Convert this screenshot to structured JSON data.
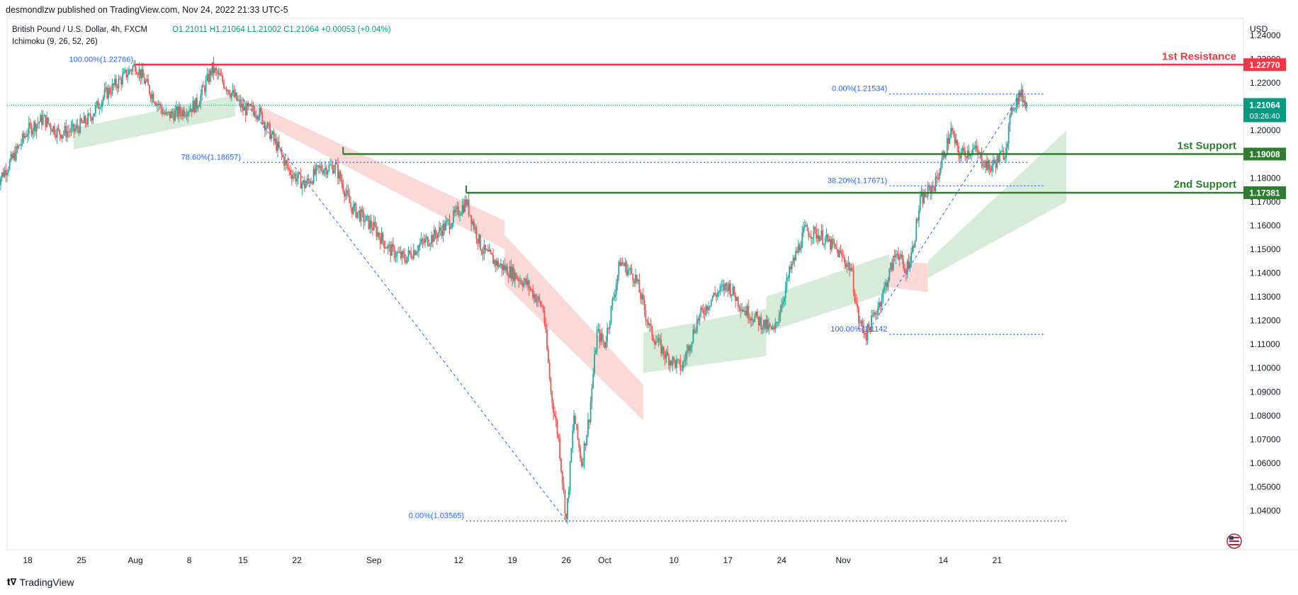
{
  "header": {
    "published": "desmondlzw published on TradingView.com, Nov 24, 2022 21:33 UTC-5",
    "symbol": "British Pound / U.S. Dollar, 4h, FXCM",
    "ohlc": "O1.21011  H1.21064  L1.21002  C1.21064 +0.00053 (+0.04%)",
    "indicator": "Ichimoku (9, 26, 52, 26)"
  },
  "footer": {
    "brand": "TradingView"
  },
  "colors": {
    "bull": "#26a69a",
    "bear": "#ef5350",
    "resistance": "#f23645",
    "support": "#2e7d32",
    "fib": "#2962ff",
    "cloud_bull": "#cfe8d1",
    "cloud_bear": "#f9d2cf",
    "price_tag": "#089981"
  },
  "chart_data": {
    "type": "candlestick",
    "currency": "USD",
    "ylim": [
      1.033,
      1.243
    ],
    "y_ticks": [
      1.24,
      1.23,
      1.22,
      1.21,
      1.2,
      1.19,
      1.18,
      1.17,
      1.16,
      1.15,
      1.14,
      1.13,
      1.12,
      1.11,
      1.1,
      1.09,
      1.08,
      1.07,
      1.06,
      1.05,
      1.04
    ],
    "y_tick_labels": [
      "1.24000",
      "1.23000",
      "1.22000",
      "1.21000",
      "1.20000",
      "1.19000",
      "1.18000",
      "1.17000",
      "1.16000",
      "1.15000",
      "1.14000",
      "1.13000",
      "1.12000",
      "1.11000",
      "1.10000",
      "1.09000",
      "1.08000",
      "1.07000",
      "1.06000",
      "1.05000",
      "1.04000"
    ],
    "x_tick_labels": [
      {
        "label": "18",
        "date": "2022-07-18"
      },
      {
        "label": "25",
        "date": "2022-07-25"
      },
      {
        "label": "Aug",
        "date": "2022-08-01"
      },
      {
        "label": "8",
        "date": "2022-08-08"
      },
      {
        "label": "15",
        "date": "2022-08-15"
      },
      {
        "label": "22",
        "date": "2022-08-22"
      },
      {
        "label": "Sep",
        "date": "2022-09-01"
      },
      {
        "label": "12",
        "date": "2022-09-12"
      },
      {
        "label": "19",
        "date": "2022-09-19"
      },
      {
        "label": "26",
        "date": "2022-09-26"
      },
      {
        "label": "Oct",
        "date": "2022-10-01"
      },
      {
        "label": "10",
        "date": "2022-10-10"
      },
      {
        "label": "17",
        "date": "2022-10-17"
      },
      {
        "label": "24",
        "date": "2022-10-24"
      },
      {
        "label": "Nov",
        "date": "2022-11-01"
      },
      {
        "label": "14",
        "date": "2022-11-14"
      },
      {
        "label": "21",
        "date": "2022-11-21"
      }
    ],
    "price_path": [
      [
        "2022-07-14",
        1.178
      ],
      [
        "2022-07-16",
        1.188
      ],
      [
        "2022-07-18",
        1.2
      ],
      [
        "2022-07-20",
        1.205
      ],
      [
        "2022-07-22",
        1.199
      ],
      [
        "2022-07-24",
        1.2
      ],
      [
        "2022-07-26",
        1.205
      ],
      [
        "2022-07-28",
        1.215
      ],
      [
        "2022-07-30",
        1.221
      ],
      [
        "2022-08-01",
        1.2277
      ],
      [
        "2022-08-03",
        1.216
      ],
      [
        "2022-08-05",
        1.206
      ],
      [
        "2022-08-07",
        1.208
      ],
      [
        "2022-08-09",
        1.211
      ],
      [
        "2022-08-11",
        1.226
      ],
      [
        "2022-08-13",
        1.218
      ],
      [
        "2022-08-15",
        1.209
      ],
      [
        "2022-08-17",
        1.208
      ],
      [
        "2022-08-19",
        1.196
      ],
      [
        "2022-08-21",
        1.183
      ],
      [
        "2022-08-23",
        1.177
      ],
      [
        "2022-08-25",
        1.184
      ],
      [
        "2022-08-27",
        1.185
      ],
      [
        "2022-08-29",
        1.168
      ],
      [
        "2022-09-01",
        1.159
      ],
      [
        "2022-09-03",
        1.15
      ],
      [
        "2022-09-05",
        1.146
      ],
      [
        "2022-09-07",
        1.152
      ],
      [
        "2022-09-09",
        1.156
      ],
      [
        "2022-09-11",
        1.162
      ],
      [
        "2022-09-13",
        1.17
      ],
      [
        "2022-09-15",
        1.15
      ],
      [
        "2022-09-17",
        1.144
      ],
      [
        "2022-09-19",
        1.14
      ],
      [
        "2022-09-21",
        1.135
      ],
      [
        "2022-09-23",
        1.125
      ],
      [
        "2022-09-24",
        1.09
      ],
      [
        "2022-09-25",
        1.07
      ],
      [
        "2022-09-26",
        1.036
      ],
      [
        "2022-09-27",
        1.08
      ],
      [
        "2022-09-28",
        1.06
      ],
      [
        "2022-09-29",
        1.08
      ],
      [
        "2022-09-30",
        1.115
      ],
      [
        "2022-10-01",
        1.11
      ],
      [
        "2022-10-03",
        1.145
      ],
      [
        "2022-10-05",
        1.138
      ],
      [
        "2022-10-07",
        1.115
      ],
      [
        "2022-10-09",
        1.105
      ],
      [
        "2022-10-11",
        1.1
      ],
      [
        "2022-10-13",
        1.12
      ],
      [
        "2022-10-15",
        1.13
      ],
      [
        "2022-10-17",
        1.135
      ],
      [
        "2022-10-19",
        1.125
      ],
      [
        "2022-10-21",
        1.12
      ],
      [
        "2022-10-23",
        1.115
      ],
      [
        "2022-10-25",
        1.14
      ],
      [
        "2022-10-27",
        1.158
      ],
      [
        "2022-10-29",
        1.156
      ],
      [
        "2022-10-31",
        1.15
      ],
      [
        "2022-11-02",
        1.142
      ],
      [
        "2022-11-03",
        1.12
      ],
      [
        "2022-11-04",
        1.1142
      ],
      [
        "2022-11-06",
        1.13
      ],
      [
        "2022-11-08",
        1.15
      ],
      [
        "2022-11-09",
        1.14
      ],
      [
        "2022-11-10",
        1.15
      ],
      [
        "2022-11-11",
        1.17
      ],
      [
        "2022-11-13",
        1.178
      ],
      [
        "2022-11-15",
        1.2
      ],
      [
        "2022-11-16",
        1.19
      ],
      [
        "2022-11-18",
        1.192
      ],
      [
        "2022-11-20",
        1.184
      ],
      [
        "2022-11-22",
        1.191
      ],
      [
        "2022-11-23",
        1.21
      ],
      [
        "2022-11-24",
        1.21534
      ],
      [
        "2022-11-25",
        1.21064
      ]
    ],
    "levels": [
      {
        "name": "1st Resistance",
        "value": 1.2277,
        "label": "1.22770",
        "type": "resistance",
        "start": "2022-08-01"
      },
      {
        "name": "1st Support",
        "value": 1.19008,
        "label": "1.19008",
        "type": "support",
        "start": "2022-08-28"
      },
      {
        "name": "2nd Support",
        "value": 1.17381,
        "label": "1.17381",
        "type": "support",
        "start": "2022-09-13"
      }
    ],
    "fib_labels": [
      {
        "text": "100.00%(1.22766)",
        "value": 1.22766,
        "date": "2022-08-01",
        "anchor": "right"
      },
      {
        "text": "78.60%(1.18657)",
        "value": 1.18657,
        "date": "2022-08-15",
        "anchor": "right"
      },
      {
        "text": "0.00%(1.03565)",
        "value": 1.03565,
        "date": "2022-09-13",
        "anchor": "right"
      },
      {
        "text": "0.00%(1.21534)",
        "value": 1.21534,
        "date": "2022-11-07",
        "anchor": "right"
      },
      {
        "text": "38.20%(1.17671)",
        "value": 1.17671,
        "date": "2022-11-07",
        "anchor": "right"
      },
      {
        "text": "100.00%(1.1142",
        "value": 1.1142,
        "date": "2022-11-07",
        "anchor": "right"
      }
    ],
    "fib_lines": [
      {
        "value": 1.18657,
        "from": "2022-08-15",
        "to": "2022-11-25"
      },
      {
        "value": 1.03565,
        "from": "2022-09-13",
        "to": "2022-11-30"
      },
      {
        "value": 1.21534,
        "from": "2022-11-07",
        "to": "2022-11-27"
      },
      {
        "value": 1.17671,
        "from": "2022-11-07",
        "to": "2022-11-27"
      },
      {
        "value": 1.1142,
        "from": "2022-11-07",
        "to": "2022-11-27"
      }
    ],
    "fib_diagonals": [
      {
        "from": [
          "2022-08-15",
          1.213
        ],
        "to": [
          "2022-09-26",
          1.03565
        ]
      },
      {
        "from": [
          "2022-11-04",
          1.1142
        ],
        "to": [
          "2022-11-24",
          1.21534
        ]
      }
    ],
    "current_price": {
      "value": 1.21064,
      "label": "1.21064",
      "countdown": "03:26:40"
    },
    "ichimoku_cloud": [
      {
        "from": "2022-07-24",
        "to": "2022-08-14",
        "top": [
          1.201,
          1.215
        ],
        "bottom": [
          1.192,
          1.206
        ],
        "trend": "bull"
      },
      {
        "from": "2022-08-16",
        "to": "2022-09-18",
        "top": [
          1.212,
          1.162
        ],
        "bottom": [
          1.206,
          1.15
        ],
        "trend": "bear"
      },
      {
        "from": "2022-09-18",
        "to": "2022-10-06",
        "top": [
          1.156,
          1.093
        ],
        "bottom": [
          1.135,
          1.078
        ],
        "trend": "bear"
      },
      {
        "from": "2022-10-06",
        "to": "2022-10-22",
        "top": [
          1.115,
          1.125
        ],
        "bottom": [
          1.098,
          1.105
        ],
        "trend": "bull"
      },
      {
        "from": "2022-10-22",
        "to": "2022-11-07",
        "top": [
          1.13,
          1.148
        ],
        "bottom": [
          1.115,
          1.132
        ],
        "trend": "bull"
      },
      {
        "from": "2022-11-07",
        "to": "2022-11-12",
        "top": [
          1.145,
          1.144
        ],
        "bottom": [
          1.134,
          1.132
        ],
        "trend": "bear"
      },
      {
        "from": "2022-11-12",
        "to": "2022-11-30",
        "top": [
          1.145,
          1.2
        ],
        "bottom": [
          1.138,
          1.17
        ],
        "trend": "bull"
      }
    ]
  }
}
